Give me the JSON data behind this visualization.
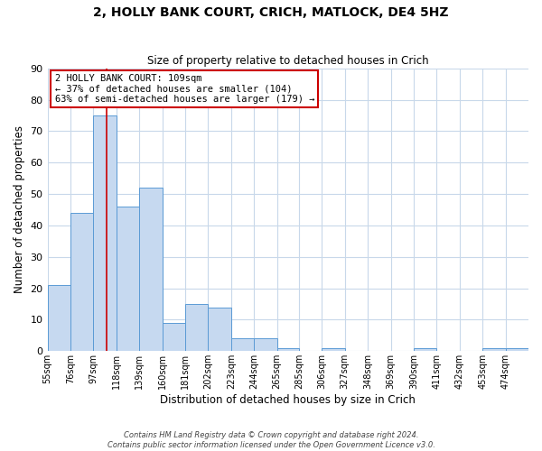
{
  "title1": "2, HOLLY BANK COURT, CRICH, MATLOCK, DE4 5HZ",
  "title2": "Size of property relative to detached houses in Crich",
  "xlabel": "Distribution of detached houses by size in Crich",
  "ylabel": "Number of detached properties",
  "footnote1": "Contains HM Land Registry data © Crown copyright and database right 2024.",
  "footnote2": "Contains public sector information licensed under the Open Government Licence v3.0.",
  "bar_labels": [
    "55sqm",
    "76sqm",
    "97sqm",
    "118sqm",
    "139sqm",
    "160sqm",
    "181sqm",
    "202sqm",
    "223sqm",
    "244sqm",
    "265sqm",
    "285sqm",
    "306sqm",
    "327sqm",
    "348sqm",
    "369sqm",
    "390sqm",
    "411sqm",
    "432sqm",
    "453sqm",
    "474sqm"
  ],
  "bar_values": [
    21,
    44,
    75,
    46,
    52,
    9,
    15,
    14,
    4,
    4,
    1,
    0,
    1,
    0,
    0,
    0,
    1,
    0,
    0,
    1,
    1
  ],
  "bar_color": "#c6d9f0",
  "bar_edge_color": "#5b9bd5",
  "ylim": [
    0,
    90
  ],
  "yticks": [
    0,
    10,
    20,
    30,
    40,
    50,
    60,
    70,
    80,
    90
  ],
  "property_line_color": "#cc0000",
  "annotation_title": "2 HOLLY BANK COURT: 109sqm",
  "annotation_line1": "← 37% of detached houses are smaller (104)",
  "annotation_line2": "63% of semi-detached houses are larger (179) →",
  "annotation_box_color": "#ffffff",
  "annotation_box_edge": "#cc0000",
  "bin_edges": [
    55,
    76,
    97,
    118,
    139,
    160,
    181,
    202,
    223,
    244,
    265,
    285,
    306,
    327,
    348,
    369,
    390,
    411,
    432,
    453,
    474,
    495
  ],
  "property_line_x": 109,
  "background_color": "#ffffff",
  "grid_color": "#c8d8ea"
}
